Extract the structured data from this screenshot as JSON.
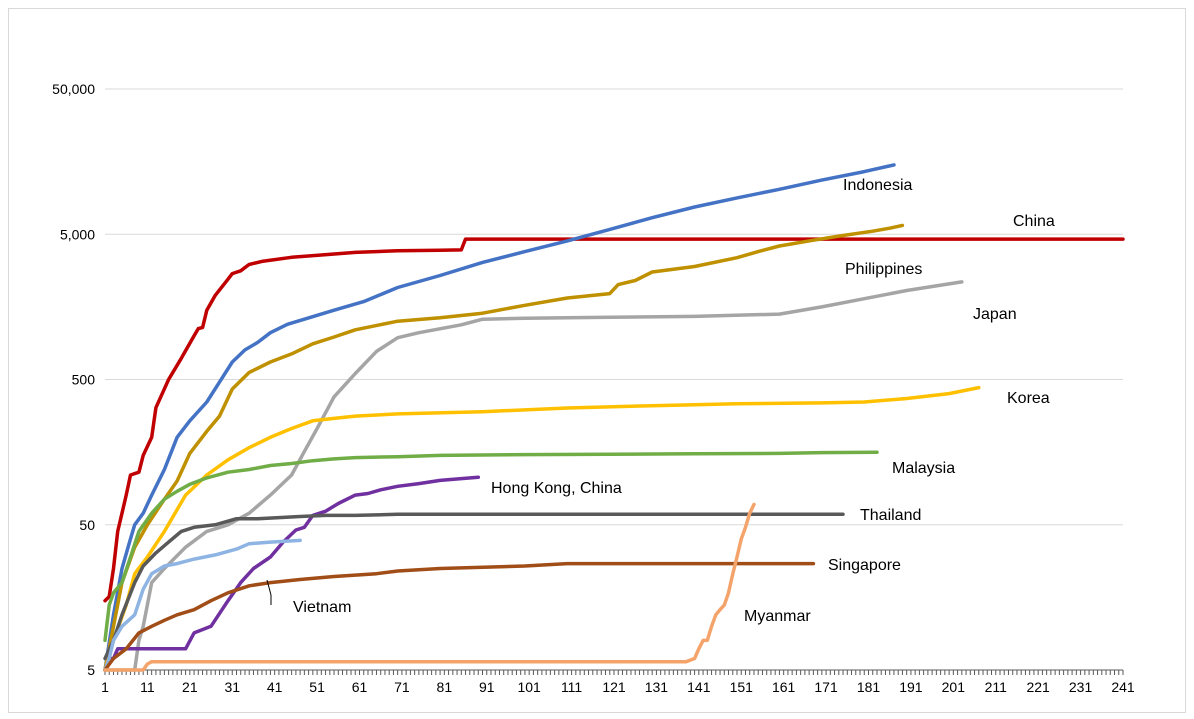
{
  "chart_data": {
    "type": "line",
    "title": "",
    "xlabel": "",
    "ylabel": "",
    "y_scale": "log",
    "ylim": [
      5,
      50000
    ],
    "xlim": [
      1,
      241
    ],
    "y_ticks": [
      5,
      50,
      500,
      5000,
      50000
    ],
    "y_tick_labels": [
      "5",
      "50",
      "500",
      "5,000",
      "50,000"
    ],
    "x_ticks": [
      1,
      11,
      21,
      31,
      41,
      51,
      61,
      71,
      81,
      91,
      101,
      111,
      121,
      131,
      141,
      151,
      161,
      171,
      181,
      191,
      201,
      211,
      221,
      231,
      241
    ],
    "grid": "horizontal",
    "legend": "none",
    "series": [
      {
        "name": "China",
        "color": "#c00000",
        "points": [
          [
            1,
            15
          ],
          [
            2,
            16
          ],
          [
            3,
            25
          ],
          [
            4,
            45
          ],
          [
            5,
            60
          ],
          [
            6,
            80
          ],
          [
            7,
            110
          ],
          [
            9,
            115
          ],
          [
            10,
            150
          ],
          [
            12,
            200
          ],
          [
            13,
            320
          ],
          [
            16,
            500
          ],
          [
            19,
            700
          ],
          [
            22,
            1000
          ],
          [
            23,
            1120
          ],
          [
            24,
            1140
          ],
          [
            25,
            1500
          ],
          [
            27,
            1900
          ],
          [
            30,
            2450
          ],
          [
            31,
            2680
          ],
          [
            33,
            2800
          ],
          [
            35,
            3100
          ],
          [
            38,
            3250
          ],
          [
            45,
            3470
          ],
          [
            52,
            3600
          ],
          [
            60,
            3750
          ],
          [
            70,
            3850
          ],
          [
            80,
            3880
          ],
          [
            85,
            3900
          ],
          [
            86,
            4630
          ],
          [
            100,
            4630
          ],
          [
            150,
            4630
          ],
          [
            200,
            4630
          ],
          [
            241,
            4630
          ]
        ]
      },
      {
        "name": "Indonesia",
        "color": "#4472c4",
        "points": [
          [
            1,
            5
          ],
          [
            3,
            12
          ],
          [
            5,
            25
          ],
          [
            7,
            40
          ],
          [
            8,
            50
          ],
          [
            10,
            60
          ],
          [
            12,
            80
          ],
          [
            15,
            120
          ],
          [
            18,
            200
          ],
          [
            21,
            260
          ],
          [
            25,
            350
          ],
          [
            28,
            480
          ],
          [
            31,
            660
          ],
          [
            34,
            800
          ],
          [
            37,
            900
          ],
          [
            40,
            1050
          ],
          [
            44,
            1200
          ],
          [
            48,
            1300
          ],
          [
            55,
            1500
          ],
          [
            62,
            1720
          ],
          [
            70,
            2150
          ],
          [
            80,
            2600
          ],
          [
            90,
            3200
          ],
          [
            100,
            3800
          ],
          [
            110,
            4500
          ],
          [
            120,
            5400
          ],
          [
            130,
            6500
          ],
          [
            140,
            7700
          ],
          [
            150,
            8900
          ],
          [
            160,
            10200
          ],
          [
            170,
            11800
          ],
          [
            180,
            13500
          ],
          [
            187,
            15000
          ]
        ]
      },
      {
        "name": "Philippines",
        "color": "#bf9000",
        "points": [
          [
            1,
            5
          ],
          [
            3,
            10
          ],
          [
            5,
            20
          ],
          [
            8,
            35
          ],
          [
            11,
            50
          ],
          [
            15,
            75
          ],
          [
            18,
            100
          ],
          [
            21,
            155
          ],
          [
            25,
            220
          ],
          [
            28,
            280
          ],
          [
            31,
            430
          ],
          [
            35,
            560
          ],
          [
            40,
            660
          ],
          [
            45,
            750
          ],
          [
            50,
            880
          ],
          [
            55,
            980
          ],
          [
            60,
            1100
          ],
          [
            70,
            1260
          ],
          [
            80,
            1330
          ],
          [
            90,
            1430
          ],
          [
            100,
            1620
          ],
          [
            110,
            1820
          ],
          [
            120,
            1950
          ],
          [
            122,
            2250
          ],
          [
            126,
            2400
          ],
          [
            130,
            2750
          ],
          [
            140,
            3000
          ],
          [
            150,
            3450
          ],
          [
            155,
            3800
          ],
          [
            160,
            4150
          ],
          [
            168,
            4550
          ],
          [
            175,
            4900
          ],
          [
            182,
            5250
          ],
          [
            186,
            5500
          ],
          [
            189,
            5750
          ]
        ]
      },
      {
        "name": "Japan",
        "color": "#a5a5a5",
        "points": [
          [
            1,
            5
          ],
          [
            8,
            5
          ],
          [
            9,
            8
          ],
          [
            10,
            10
          ],
          [
            12,
            20
          ],
          [
            15,
            25
          ],
          [
            20,
            35
          ],
          [
            25,
            45
          ],
          [
            30,
            50
          ],
          [
            35,
            60
          ],
          [
            40,
            80
          ],
          [
            45,
            110
          ],
          [
            48,
            160
          ],
          [
            51,
            230
          ],
          [
            55,
            380
          ],
          [
            60,
            550
          ],
          [
            65,
            780
          ],
          [
            70,
            970
          ],
          [
            75,
            1050
          ],
          [
            85,
            1190
          ],
          [
            90,
            1300
          ],
          [
            100,
            1320
          ],
          [
            120,
            1340
          ],
          [
            140,
            1360
          ],
          [
            160,
            1410
          ],
          [
            170,
            1580
          ],
          [
            180,
            1800
          ],
          [
            190,
            2050
          ],
          [
            203,
            2350
          ]
        ]
      },
      {
        "name": "Korea",
        "color": "#ffc000",
        "points": [
          [
            1,
            5
          ],
          [
            3,
            8
          ],
          [
            6,
            14
          ],
          [
            8,
            23
          ],
          [
            11,
            30
          ],
          [
            15,
            45
          ],
          [
            20,
            80
          ],
          [
            25,
            110
          ],
          [
            30,
            140
          ],
          [
            35,
            170
          ],
          [
            40,
            200
          ],
          [
            45,
            230
          ],
          [
            50,
            260
          ],
          [
            55,
            270
          ],
          [
            60,
            280
          ],
          [
            70,
            290
          ],
          [
            90,
            300
          ],
          [
            110,
            318
          ],
          [
            130,
            330
          ],
          [
            150,
            340
          ],
          [
            170,
            345
          ],
          [
            180,
            350
          ],
          [
            190,
            370
          ],
          [
            200,
            400
          ],
          [
            207,
            440
          ]
        ]
      },
      {
        "name": "Malaysia",
        "color": "#70ad47",
        "points": [
          [
            1,
            8
          ],
          [
            2,
            14
          ],
          [
            3,
            17
          ],
          [
            5,
            20
          ],
          [
            7,
            30
          ],
          [
            9,
            45
          ],
          [
            12,
            60
          ],
          [
            15,
            75
          ],
          [
            18,
            85
          ],
          [
            21,
            95
          ],
          [
            25,
            105
          ],
          [
            30,
            115
          ],
          [
            35,
            120
          ],
          [
            40,
            128
          ],
          [
            45,
            132
          ],
          [
            50,
            138
          ],
          [
            55,
            142
          ],
          [
            60,
            145
          ],
          [
            70,
            147
          ],
          [
            80,
            150
          ],
          [
            100,
            152
          ],
          [
            120,
            153
          ],
          [
            140,
            154
          ],
          [
            160,
            155
          ],
          [
            170,
            157
          ],
          [
            183,
            158
          ]
        ]
      },
      {
        "name": "Hong Kong, China",
        "color": "#7030a0",
        "points": [
          [
            1,
            5
          ],
          [
            2,
            6
          ],
          [
            3,
            6
          ],
          [
            4,
            7
          ],
          [
            20,
            7
          ],
          [
            22,
            9
          ],
          [
            26,
            10
          ],
          [
            30,
            15
          ],
          [
            33,
            20
          ],
          [
            36,
            25
          ],
          [
            40,
            30
          ],
          [
            43,
            38
          ],
          [
            46,
            46
          ],
          [
            48,
            48
          ],
          [
            50,
            58
          ],
          [
            53,
            62
          ],
          [
            56,
            70
          ],
          [
            60,
            80
          ],
          [
            63,
            82
          ],
          [
            66,
            87
          ],
          [
            70,
            92
          ],
          [
            75,
            96
          ],
          [
            80,
            101
          ],
          [
            85,
            104
          ],
          [
            89,
            106
          ]
        ]
      },
      {
        "name": "Thailand",
        "color": "#595959",
        "points": [
          [
            1,
            6
          ],
          [
            3,
            8
          ],
          [
            5,
            12
          ],
          [
            8,
            20
          ],
          [
            10,
            26
          ],
          [
            13,
            32
          ],
          [
            16,
            38
          ],
          [
            19,
            45
          ],
          [
            22,
            48
          ],
          [
            27,
            50
          ],
          [
            32,
            55
          ],
          [
            37,
            55
          ],
          [
            42,
            56
          ],
          [
            47,
            57
          ],
          [
            53,
            58
          ],
          [
            60,
            58
          ],
          [
            70,
            59
          ],
          [
            100,
            59
          ],
          [
            130,
            59
          ],
          [
            150,
            59
          ],
          [
            175,
            59
          ]
        ]
      },
      {
        "name": "Vietnam",
        "color": "#8eb4e3",
        "points": [
          [
            1,
            5
          ],
          [
            2,
            6
          ],
          [
            3,
            8
          ],
          [
            5,
            10
          ],
          [
            8,
            12
          ],
          [
            10,
            18
          ],
          [
            12,
            23
          ],
          [
            15,
            26
          ],
          [
            18,
            27
          ],
          [
            22,
            29
          ],
          [
            27,
            31
          ],
          [
            32,
            34
          ],
          [
            35,
            37
          ],
          [
            40,
            38
          ],
          [
            47,
            39
          ]
        ]
      },
      {
        "name": "Singapore",
        "color": "#a14d17",
        "points": [
          [
            1,
            5
          ],
          [
            3,
            6
          ],
          [
            6,
            7
          ],
          [
            9,
            9
          ],
          [
            12,
            10
          ],
          [
            15,
            11
          ],
          [
            18,
            12
          ],
          [
            22,
            13
          ],
          [
            26,
            15
          ],
          [
            30,
            17
          ],
          [
            35,
            19
          ],
          [
            40,
            20
          ],
          [
            47,
            21
          ],
          [
            55,
            22
          ],
          [
            65,
            23
          ],
          [
            70,
            24
          ],
          [
            80,
            25
          ],
          [
            100,
            26
          ],
          [
            110,
            27
          ],
          [
            130,
            27
          ],
          [
            150,
            27
          ],
          [
            168,
            27
          ]
        ]
      },
      {
        "name": "Myanmar",
        "color": "#f4a46b",
        "points": [
          [
            1,
            5
          ],
          [
            10,
            5
          ],
          [
            11,
            5.5
          ],
          [
            12,
            5.7
          ],
          [
            50,
            5.7
          ],
          [
            100,
            5.7
          ],
          [
            138,
            5.7
          ],
          [
            140,
            6
          ],
          [
            141,
            7
          ],
          [
            142,
            8
          ],
          [
            143,
            8
          ],
          [
            144,
            10
          ],
          [
            145,
            12
          ],
          [
            146,
            13
          ],
          [
            147,
            14
          ],
          [
            148,
            17
          ],
          [
            149,
            23
          ],
          [
            150,
            30
          ],
          [
            151,
            40
          ],
          [
            152,
            48
          ],
          [
            153,
            60
          ],
          [
            154,
            69
          ]
        ]
      }
    ]
  },
  "labels": {
    "indonesia": "Indonesia",
    "china": "China",
    "philippines": "Philippines",
    "japan": "Japan",
    "korea": "Korea",
    "malaysia": "Malaysia",
    "hongkong": "Hong Kong, China",
    "thailand": "Thailand",
    "singapore": "Singapore",
    "vietnam": "Vietnam",
    "myanmar": "Myanmar"
  }
}
